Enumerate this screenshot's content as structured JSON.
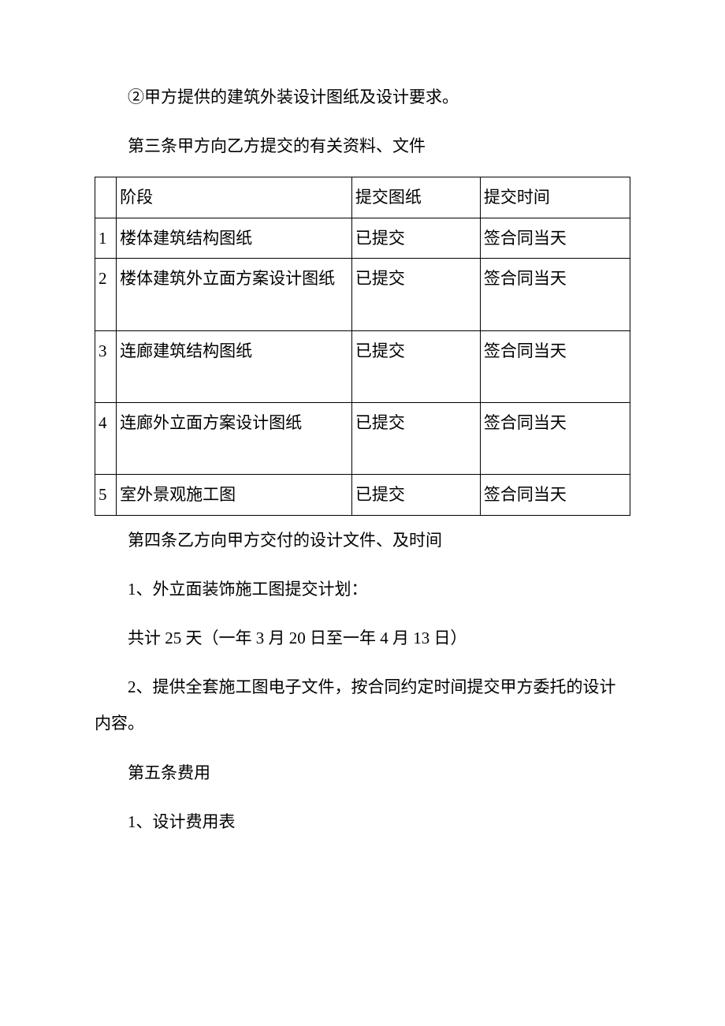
{
  "paragraphs": {
    "p1": "②甲方提供的建筑外装设计图纸及设计要求。",
    "p2": "第三条甲方向乙方提交的有关资料、文件",
    "p3": "第四条乙方向甲方交付的设计文件、及时间",
    "p4": "1、外立面装饰施工图提交计划：",
    "p5": "共计 25 天（一年 3 月 20 日至一年 4 月 13 日）",
    "p6": "2、提供全套施工图电子文件，按合同约定时间提交甲方委托的设计内容。",
    "p7": "第五条费用",
    "p8": "1、设计费用表"
  },
  "table": {
    "columns": [
      "",
      "阶段",
      "提交图纸",
      "提交时间"
    ],
    "rows": [
      {
        "num": "1",
        "phase": "楼体建筑结构图纸",
        "submit": "已提交",
        "time": "签合同当天",
        "tall": false
      },
      {
        "num": "2",
        "phase": "楼体建筑外立面方案设计图纸",
        "submit": "已提交",
        "time": "签合同当天",
        "tall": true
      },
      {
        "num": "3",
        "phase": "连廊建筑结构图纸",
        "submit": "已提交",
        "time": "签合同当天",
        "tall": true
      },
      {
        "num": "4",
        "phase": "连廊外立面方案设计图纸",
        "submit": "已提交",
        "time": "签合同当天",
        "tall": true
      },
      {
        "num": "5",
        "phase": "室外景观施工图",
        "submit": "已提交",
        "time": "签合同当天",
        "tall": false
      }
    ],
    "border_color": "#000000",
    "font_size": 21,
    "background_color": "#ffffff"
  }
}
